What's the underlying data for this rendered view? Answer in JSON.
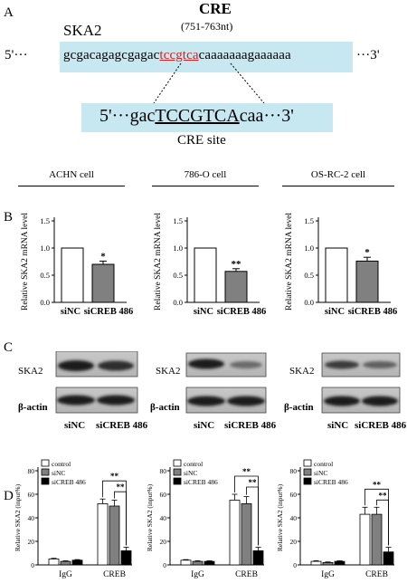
{
  "panelA": {
    "letter": "A",
    "title": "CRE",
    "position": "(751-763nt)",
    "gene": "SKA2",
    "seq_prefix": "5'···",
    "seq_left": "gcgacagagcgagac",
    "seq_mid": "tccgtca",
    "seq_right": "caaaaaaagaaaaaa",
    "seq_suffix": "···3'",
    "site_prefix": "5'···gac",
    "site_core": "TCCGTCA",
    "site_suffix": "caa···3'",
    "site_label": "CRE site"
  },
  "panelB": {
    "letter": "B",
    "cells": [
      "ACHN cell",
      "786-O cell",
      "OS-RC-2 cell"
    ],
    "ylabel": "Relative SKA2 mRNA level",
    "categories": [
      "siNC",
      "siCREB 486"
    ]
  },
  "panelC": {
    "letter": "C",
    "row1": "SKA2",
    "row2": "β-actin",
    "lanes": [
      "siNC",
      "siCREB 486"
    ]
  },
  "panelD": {
    "letter": "D",
    "ylabel": "Relative SKA2 (input%)",
    "legend": [
      "control",
      "siNC",
      "siCREB 486"
    ],
    "groups": [
      "IgG",
      "CREB"
    ]
  },
  "colors": {
    "box": "#c7e8f1",
    "highlight": "#d62020",
    "grey_bar": "#808080"
  },
  "chart_data": [
    {
      "type": "bar",
      "panel": "B1",
      "categories": [
        "siNC",
        "siCREB 486"
      ],
      "values": [
        1.0,
        0.7
      ],
      "errors": [
        0,
        0.06
      ],
      "yticks": [
        "0.0",
        "0.5",
        "1.0",
        "1.5"
      ],
      "ylim": [
        0,
        1.5
      ],
      "annotations": [
        "*"
      ],
      "ylabel": "Relative SKA2 mRNA level"
    },
    {
      "type": "bar",
      "panel": "B2",
      "categories": [
        "siNC",
        "siCREB 486"
      ],
      "values": [
        1.0,
        0.57
      ],
      "errors": [
        0,
        0.05
      ],
      "yticks": [
        "0.0",
        "0.5",
        "1.0",
        "1.5"
      ],
      "ylim": [
        0,
        1.5
      ],
      "annotations": [
        "**"
      ],
      "ylabel": "Relative SKA2 mRNA level"
    },
    {
      "type": "bar",
      "panel": "B3",
      "categories": [
        "siNC",
        "siCREB 486"
      ],
      "values": [
        1.0,
        0.76
      ],
      "errors": [
        0,
        0.07
      ],
      "yticks": [
        "0.0",
        "0.5",
        "1.0",
        "1.5"
      ],
      "ylim": [
        0,
        1.5
      ],
      "annotations": [
        "*"
      ],
      "ylabel": "Relative SKA2 mRNA level"
    },
    {
      "type": "bar",
      "panel": "D1",
      "categories": [
        "IgG",
        "CREB"
      ],
      "series": [
        {
          "name": "control",
          "values": [
            5,
            52
          ],
          "errors": [
            0.6,
            4
          ]
        },
        {
          "name": "siNC",
          "values": [
            3,
            50
          ],
          "errors": [
            0.5,
            5
          ]
        },
        {
          "name": "siCREB 486",
          "values": [
            4,
            12
          ],
          "errors": [
            0.5,
            3
          ]
        }
      ],
      "yticks": [
        "0",
        "20",
        "40",
        "60",
        "80"
      ],
      "ylim": [
        0,
        80
      ],
      "annotations": [
        "**",
        "**"
      ],
      "ylabel": "Relative SKA2 (input%)"
    },
    {
      "type": "bar",
      "panel": "D2",
      "categories": [
        "IgG",
        "CREB"
      ],
      "series": [
        {
          "name": "control",
          "values": [
            4,
            55
          ],
          "errors": [
            0.5,
            5
          ]
        },
        {
          "name": "siNC",
          "values": [
            3,
            52
          ],
          "errors": [
            0.5,
            6
          ]
        },
        {
          "name": "siCREB 486",
          "values": [
            3,
            12
          ],
          "errors": [
            0.5,
            3
          ]
        }
      ],
      "yticks": [
        "0",
        "20",
        "40",
        "60",
        "80"
      ],
      "ylim": [
        0,
        80
      ],
      "annotations": [
        "**",
        "**"
      ],
      "ylabel": "Relative SKA2 (input%)"
    },
    {
      "type": "bar",
      "panel": "D3",
      "categories": [
        "IgG",
        "CREB"
      ],
      "series": [
        {
          "name": "control",
          "values": [
            3,
            43
          ],
          "errors": [
            0.6,
            6
          ]
        },
        {
          "name": "siNC",
          "values": [
            2,
            43
          ],
          "errors": [
            0.5,
            6
          ]
        },
        {
          "name": "siCREB 486",
          "values": [
            3,
            11
          ],
          "errors": [
            0.5,
            4
          ]
        }
      ],
      "yticks": [
        "0",
        "20",
        "40",
        "60",
        "80"
      ],
      "ylim": [
        0,
        80
      ],
      "annotations": [
        "**",
        "**"
      ],
      "ylabel": "Relative SKA2 (input%)"
    }
  ]
}
